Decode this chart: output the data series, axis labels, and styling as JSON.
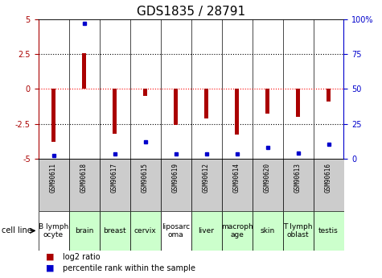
{
  "title": "GDS1835 / 28791",
  "samples": [
    "GSM90611",
    "GSM90618",
    "GSM90617",
    "GSM90615",
    "GSM90619",
    "GSM90612",
    "GSM90614",
    "GSM90620",
    "GSM90613",
    "GSM90616"
  ],
  "cell_lines": [
    "B lymph\nocyte",
    "brain",
    "breast",
    "cervix",
    "liposarc\noma",
    "liver",
    "macroph\nage",
    "skin",
    "T lymph\noblast",
    "testis"
  ],
  "cell_line_colors": [
    "#ffffff",
    "#ccffcc",
    "#ccffcc",
    "#ccffcc",
    "#ffffff",
    "#ccffcc",
    "#ccffcc",
    "#ccffcc",
    "#ccffcc",
    "#ccffcc"
  ],
  "log2_ratio": [
    -3.8,
    2.6,
    -3.2,
    -0.5,
    -2.6,
    -2.1,
    -3.3,
    -1.8,
    -2.0,
    -0.9
  ],
  "percentile_rank": [
    2,
    97,
    3,
    12,
    3,
    3,
    3,
    8,
    4,
    10
  ],
  "bar_color": "#aa0000",
  "dot_color": "#0000cc",
  "ylim": [
    -5,
    5
  ],
  "y2lim": [
    0,
    100
  ],
  "yticks": [
    -5,
    -2.5,
    0,
    2.5,
    5
  ],
  "y2ticks": [
    0,
    25,
    50,
    75,
    100
  ],
  "y2ticklabels": [
    "0",
    "25",
    "50",
    "75",
    "100%"
  ],
  "dotted_lines_black": [
    -2.5,
    2.5
  ],
  "dotted_line_red": 0,
  "bar_width": 0.15,
  "title_fontsize": 11,
  "tick_fontsize": 7,
  "sample_fontsize": 5.5,
  "cell_line_fontsize": 6.5,
  "gray_box_color": "#cccccc",
  "spine_color": "#000000"
}
